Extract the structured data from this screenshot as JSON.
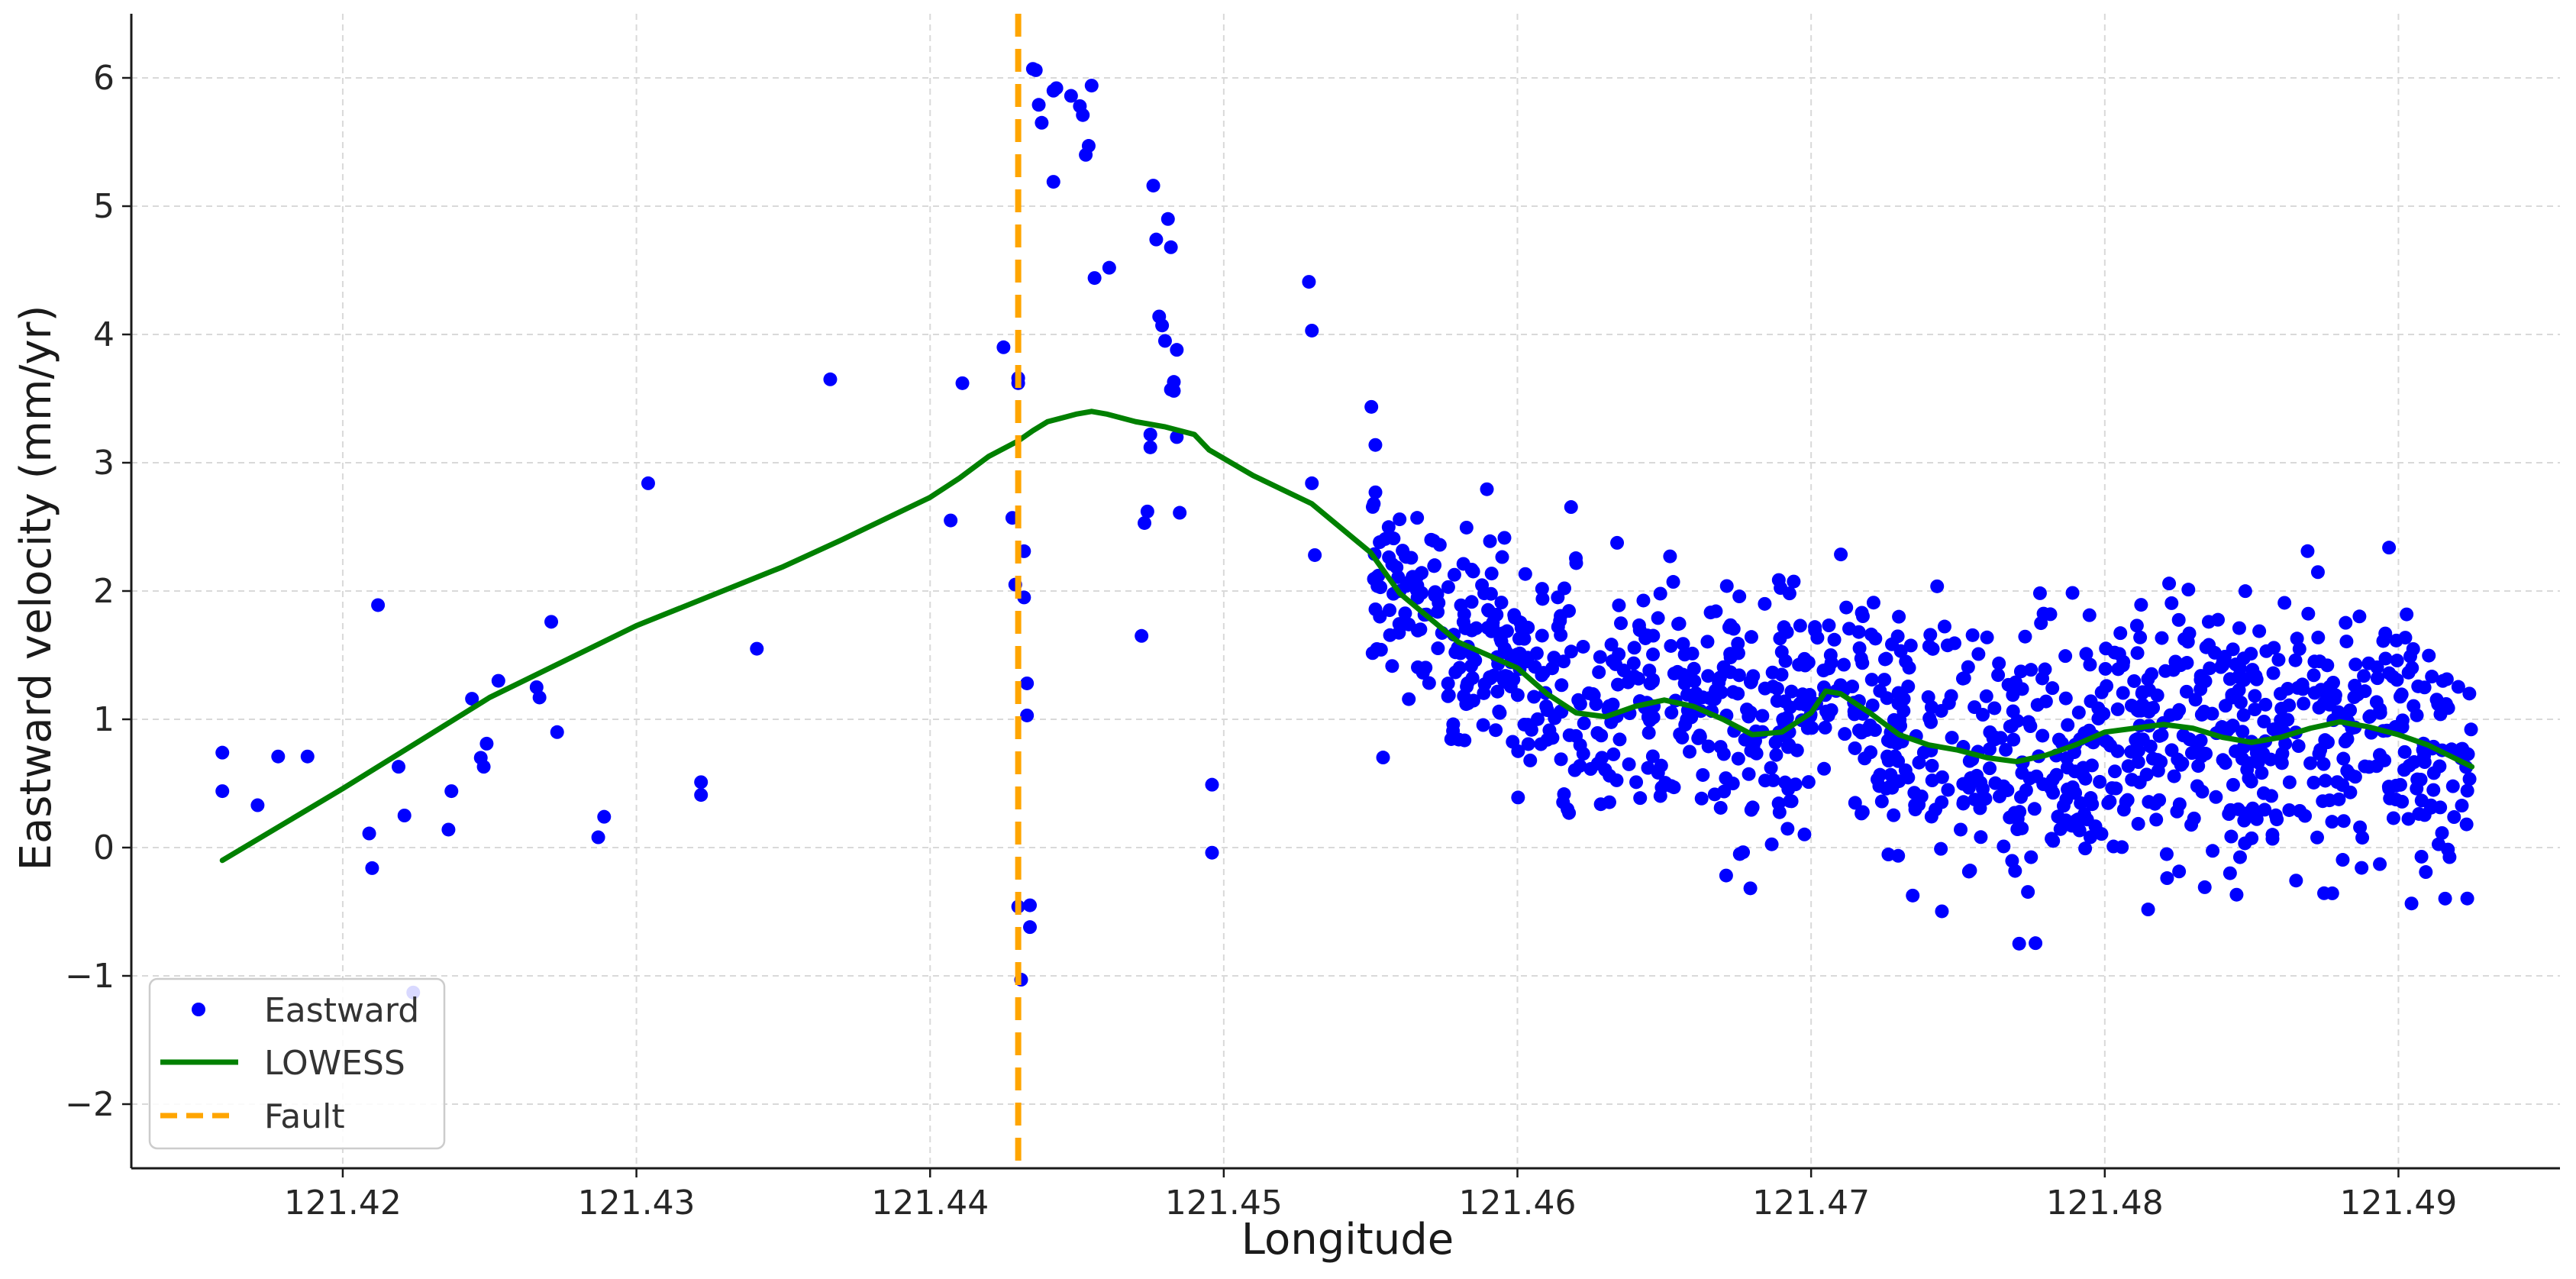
{
  "chart_data": {
    "type": "scatter",
    "xlabel": "Longitude",
    "ylabel": "Eastward velocity (mm/yr)",
    "xlim": [
      121.4128,
      121.4955
    ],
    "ylim": [
      -2.5,
      6.5
    ],
    "x_ticks": [
      121.42,
      121.43,
      121.44,
      121.45,
      121.46,
      121.47,
      121.48,
      121.49
    ],
    "x_tick_labels": [
      "121.42",
      "121.43",
      "121.44",
      "121.45",
      "121.46",
      "121.47",
      "121.48",
      "121.49"
    ],
    "y_ticks": [
      -2,
      -1,
      0,
      1,
      2,
      3,
      4,
      5,
      6
    ],
    "y_tick_labels": [
      "−2",
      "−1",
      "0",
      "1",
      "2",
      "3",
      "4",
      "5",
      "6"
    ],
    "grid": true,
    "legend_position": "bottom-left",
    "colors": {
      "scatter": "#0000ff",
      "lowess": "#008000",
      "fault": "#ffa500"
    },
    "series": [
      {
        "name": "Eastward",
        "kind": "scatter",
        "x": [
          121.4159,
          121.4159,
          121.4171,
          121.4178,
          121.4188,
          121.4209,
          121.421,
          121.4212,
          121.4219,
          121.4221,
          121.4224,
          121.4236,
          121.4237,
          121.4244,
          121.4247,
          121.4248,
          121.4249,
          121.4253,
          121.4266,
          121.4267,
          121.4271,
          121.4273,
          121.4287,
          121.4289,
          121.4304,
          121.4322,
          121.4322,
          121.4341,
          121.4366,
          121.4407,
          121.4411,
          121.4425,
          121.4428,
          121.4429,
          121.443,
          121.443,
          121.443,
          121.4431,
          121.4432,
          121.4432,
          121.4433,
          121.4433,
          121.4434,
          121.4434,
          121.4435,
          121.4436,
          121.4437,
          121.4438,
          121.4442,
          121.4442,
          121.4443,
          121.4448,
          121.4451,
          121.4452,
          121.4453,
          121.4454,
          121.4455,
          121.4456,
          121.4461,
          121.4472,
          121.4473,
          121.4474,
          121.4475,
          121.4475,
          121.4476,
          121.4477,
          121.4478,
          121.4479,
          121.448,
          121.4481,
          121.4482,
          121.4482,
          121.4483,
          121.4483,
          121.4484,
          121.4484,
          121.4485,
          121.4496,
          121.4496,
          121.4529,
          121.453,
          121.453,
          121.4531
        ],
        "y": [
          0.74,
          0.44,
          0.33,
          0.71,
          0.71,
          0.11,
          -0.16,
          1.89,
          0.63,
          0.25,
          -1.13,
          0.14,
          0.44,
          1.16,
          0.7,
          0.63,
          0.81,
          1.3,
          1.25,
          1.17,
          1.76,
          0.9,
          0.08,
          0.24,
          2.84,
          0.51,
          0.41,
          1.55,
          3.65,
          2.55,
          3.62,
          3.9,
          2.57,
          2.05,
          3.66,
          3.62,
          -0.46,
          -1.03,
          1.95,
          2.31,
          1.28,
          1.03,
          -0.45,
          -0.62,
          6.07,
          6.06,
          5.79,
          5.65,
          5.19,
          5.9,
          5.92,
          5.86,
          5.78,
          5.71,
          5.4,
          5.47,
          5.94,
          4.44,
          4.52,
          1.65,
          2.53,
          2.62,
          3.22,
          3.12,
          5.16,
          4.74,
          4.14,
          4.07,
          3.95,
          4.9,
          4.68,
          3.57,
          3.63,
          3.56,
          3.88,
          3.2,
          2.61,
          0.49,
          -0.04,
          4.41,
          4.03,
          2.84,
          2.28
        ],
        "note_dense": "dense cloud 121.455–121.4925 centered on LOWESS trend",
        "cloud_x_range": [
          121.455,
          121.4925
        ]
      },
      {
        "name": "LOWESS",
        "kind": "line",
        "x": [
          121.4159,
          121.42,
          121.425,
          121.43,
          121.435,
          121.437,
          121.44,
          121.441,
          121.442,
          121.443,
          121.4435,
          121.444,
          121.445,
          121.4455,
          121.446,
          121.447,
          121.448,
          121.449,
          121.4495,
          121.451,
          121.453,
          121.455,
          121.456,
          121.458,
          121.46,
          121.461,
          121.462,
          121.463,
          121.464,
          121.465,
          121.466,
          121.467,
          121.468,
          121.469,
          121.47,
          121.4705,
          121.471,
          121.472,
          121.473,
          121.474,
          121.475,
          121.476,
          121.477,
          121.478,
          121.479,
          121.48,
          121.481,
          121.482,
          121.483,
          121.484,
          121.485,
          121.486,
          121.487,
          121.488,
          121.489,
          121.49,
          121.491,
          121.4925
        ],
        "y": [
          -0.1,
          0.46,
          1.17,
          1.73,
          2.19,
          2.4,
          2.73,
          2.88,
          3.05,
          3.17,
          3.25,
          3.32,
          3.38,
          3.4,
          3.38,
          3.32,
          3.28,
          3.22,
          3.1,
          2.9,
          2.68,
          2.3,
          1.98,
          1.6,
          1.4,
          1.2,
          1.05,
          1.02,
          1.1,
          1.15,
          1.1,
          1.0,
          0.88,
          0.9,
          1.05,
          1.22,
          1.2,
          1.05,
          0.88,
          0.8,
          0.76,
          0.7,
          0.67,
          0.72,
          0.8,
          0.9,
          0.93,
          0.96,
          0.93,
          0.86,
          0.82,
          0.86,
          0.93,
          0.98,
          0.94,
          0.88,
          0.8,
          0.63
        ]
      },
      {
        "name": "Fault",
        "kind": "vline",
        "x": 121.443
      }
    ]
  }
}
